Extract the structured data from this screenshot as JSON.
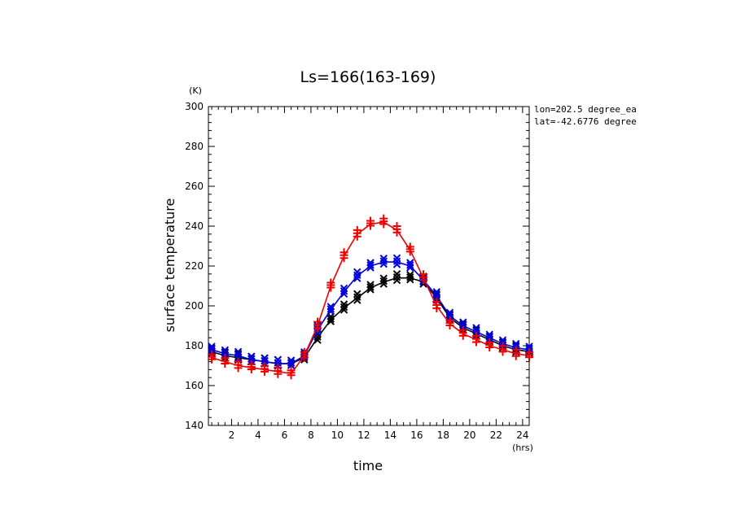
{
  "chart_data": {
    "type": "line",
    "title": "Ls=166(163-169)",
    "xlabel": "time",
    "ylabel": "surface temperature",
    "x_unit": "(hrs)",
    "y_unit": "(K)",
    "xlim": [
      0.25,
      24.5
    ],
    "ylim": [
      140,
      300
    ],
    "x_ticks": [
      2,
      4,
      6,
      8,
      10,
      12,
      14,
      16,
      18,
      20,
      22,
      24
    ],
    "y_ticks": [
      140,
      160,
      180,
      200,
      220,
      240,
      260,
      280,
      300
    ],
    "annotations": [
      "lon=202.5 degree_ea",
      "lat=-42.6776 degree"
    ],
    "x": [
      0.5,
      1.5,
      2.5,
      3.5,
      4.5,
      5.5,
      6.5,
      7.5,
      8.5,
      9.5,
      10.5,
      11.5,
      12.5,
      13.5,
      14.5,
      15.5,
      16.5,
      17.5,
      18.5,
      19.5,
      20.5,
      21.5,
      22.5,
      23.5,
      24.5
    ],
    "series": [
      {
        "color": "#000000",
        "marker": "x",
        "values": [
          177,
          175,
          174,
          173,
          172,
          171,
          171,
          174,
          184,
          193,
          199,
          204,
          209,
          212,
          214,
          214,
          212,
          204,
          194,
          189,
          186,
          183,
          180,
          178,
          177
        ]
      },
      {
        "color": "#0000dd",
        "marker": "x",
        "values": [
          178,
          176,
          175,
          173,
          172,
          171,
          171,
          175,
          188,
          198,
          207,
          215,
          220,
          222,
          222,
          220,
          213,
          205,
          195,
          190,
          187,
          184,
          181,
          179,
          178
        ]
      },
      {
        "color": "#ee0000",
        "marker": "+",
        "values": [
          174,
          172,
          170,
          169,
          168,
          167,
          166,
          175,
          190,
          210,
          225,
          236,
          241,
          242,
          238,
          228,
          214,
          200,
          191,
          186,
          183,
          180,
          178,
          176,
          175
        ]
      }
    ]
  }
}
